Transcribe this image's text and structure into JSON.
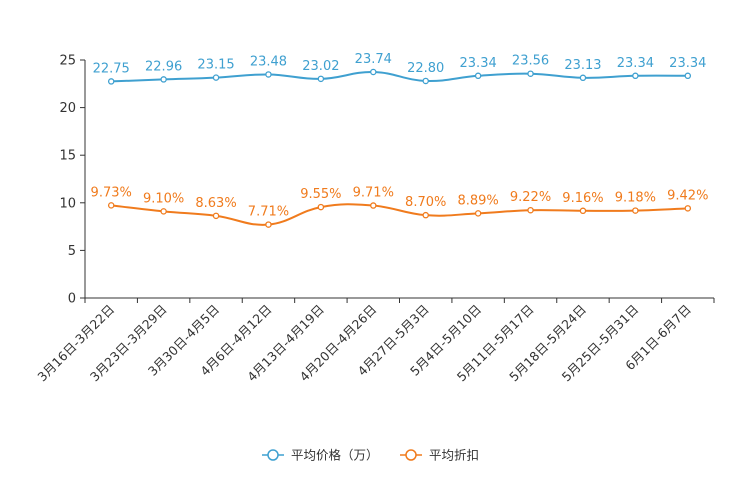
{
  "chart_data": {
    "type": "line",
    "title": "",
    "xlabel": "",
    "ylabel": "",
    "ylim": [
      0,
      25
    ],
    "yticks": [
      0,
      5,
      10,
      15,
      20,
      25
    ],
    "categories": [
      "3月16日-3月22日",
      "3月23日-3月29日",
      "3月30日-4月5日",
      "4月6日-4月12日",
      "4月13日-4月19日",
      "4月20日-4月26日",
      "4月27日-5月3日",
      "5月4日-5月10日",
      "5月11日-5月17日",
      "5月18日-5月24日",
      "5月25日-5月31日",
      "6月1日-6月7日"
    ],
    "series": [
      {
        "name": "平均价格（万）",
        "color": "#3fa0d0",
        "values": [
          22.75,
          22.96,
          23.15,
          23.48,
          23.02,
          23.74,
          22.8,
          23.34,
          23.56,
          23.13,
          23.34,
          23.34
        ],
        "labels": [
          "22.75",
          "22.96",
          "23.15",
          "23.48",
          "23.02",
          "23.74",
          "22.80",
          "23.34",
          "23.56",
          "23.13",
          "23.34",
          "23.34"
        ]
      },
      {
        "name": "平均折扣",
        "color": "#f07b1d",
        "values": [
          9.73,
          9.1,
          8.63,
          7.71,
          9.55,
          9.71,
          8.7,
          8.89,
          9.22,
          9.16,
          9.18,
          9.42
        ],
        "labels": [
          "9.73%",
          "9.10%",
          "8.63%",
          "7.71%",
          "9.55%",
          "9.71%",
          "8.70%",
          "8.89%",
          "9.22%",
          "9.16%",
          "9.18%",
          "9.42%"
        ]
      }
    ],
    "legend_position": "bottom-center",
    "grid": false
  }
}
